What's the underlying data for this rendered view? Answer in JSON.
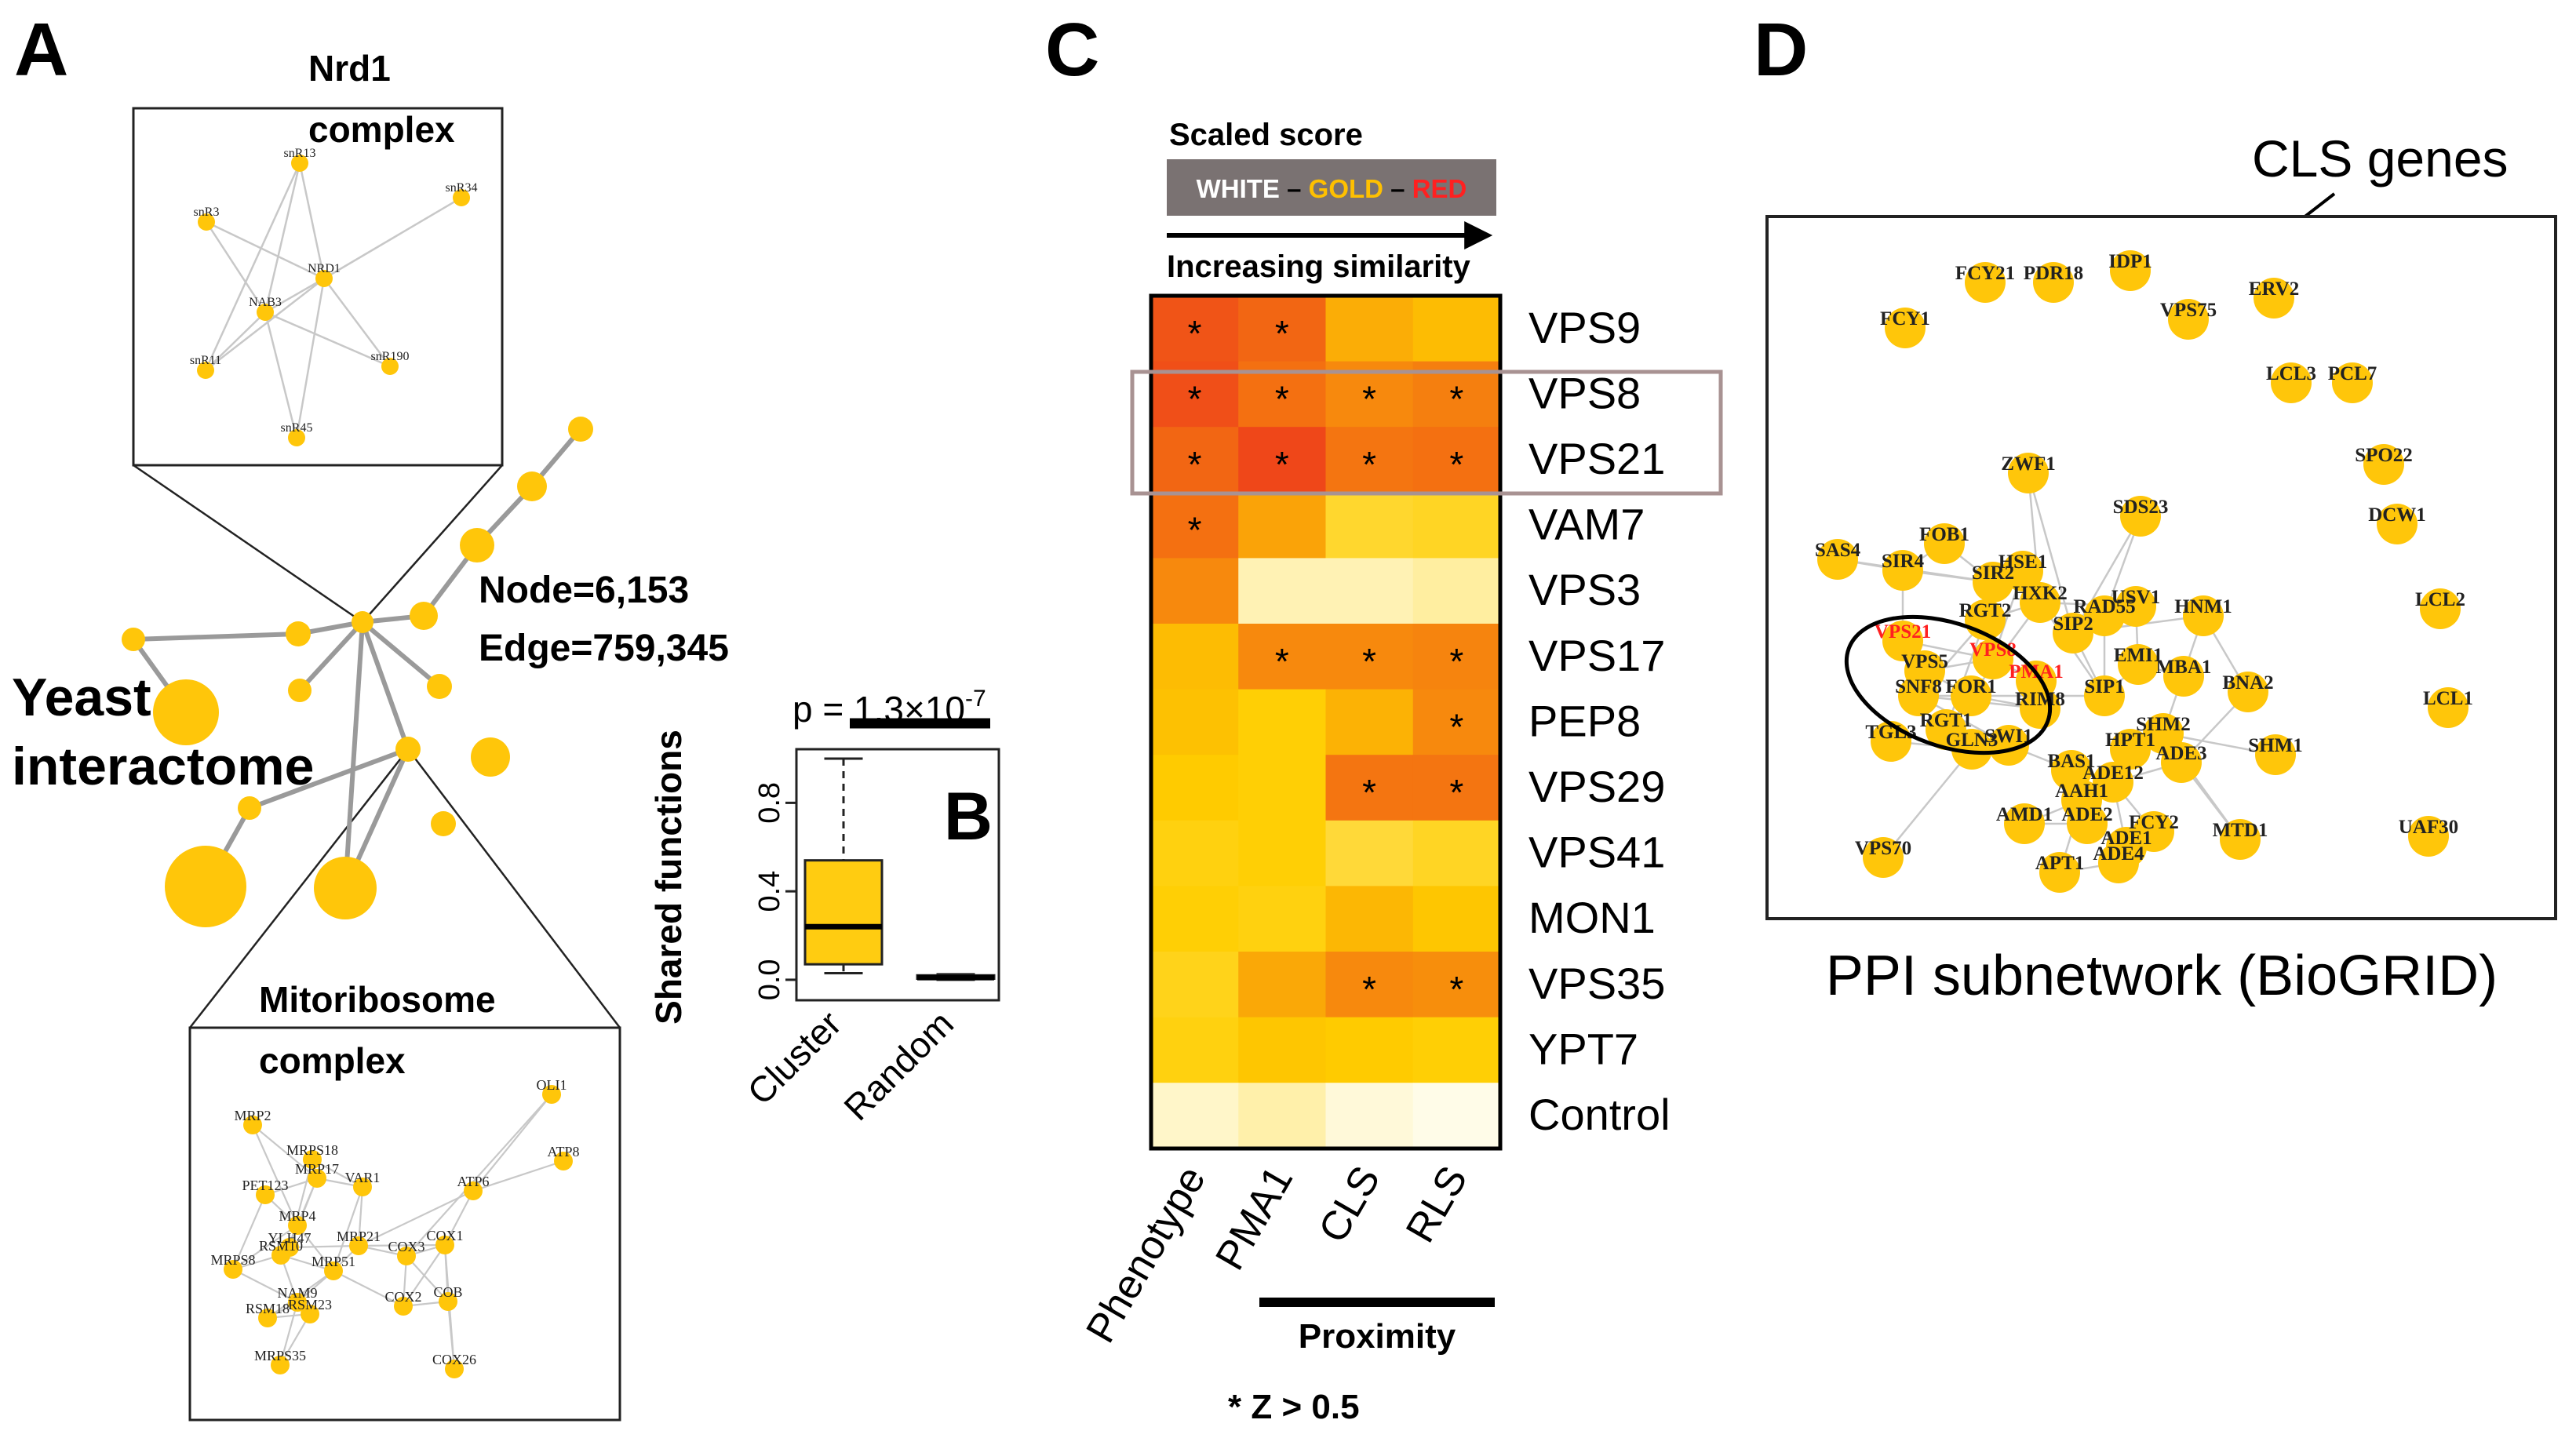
{
  "panels": {
    "A": "A",
    "B": "B",
    "C": "C",
    "D": "D"
  },
  "panel_a": {
    "title": [
      "Yeast",
      "interactome"
    ],
    "stats": {
      "nodes": "Node=6,153",
      "edges": "Edge=759,345"
    },
    "nrd1": {
      "title": [
        "Nrd1",
        "complex"
      ],
      "nodes": [
        "snR13",
        "snR34",
        "snR3",
        "NRD1",
        "NAB3",
        "snR11",
        "snR190",
        "snR45"
      ]
    },
    "mito": {
      "title": [
        "Mitoribosome",
        "complex"
      ],
      "nodes": [
        "OLI1",
        "MRP2",
        "MRPS18",
        "PET123",
        "MRP17",
        "VAR1",
        "ATP6",
        "ATP8",
        "MRP4",
        "YLH47",
        "MRP21",
        "COX3",
        "COX1",
        "MRPS8",
        "RSM10",
        "MRP51",
        "NAM9",
        "RSM18",
        "RSM23",
        "COX2",
        "COB",
        "MRPS35",
        "COX26"
      ]
    }
  },
  "panel_b": {
    "ylabel": "Shared functions",
    "pvalue": {
      "base": "p = 1.3×10",
      "exp": "-7"
    },
    "yticks": [
      "0.0",
      "0.4",
      "0.8"
    ],
    "categories": [
      "Cluster",
      "Random"
    ]
  },
  "panel_c": {
    "legend_title": "Scaled score",
    "legend_scale": {
      "white": "WHITE",
      "gold": "GOLD",
      "red": "RED",
      "sep": " – "
    },
    "legend_arrow_label": "Increasing similarity",
    "rows": [
      "VPS9",
      "VPS8",
      "VPS21",
      "VAM7",
      "VPS3",
      "VPS17",
      "PEP8",
      "VPS29",
      "VPS41",
      "MON1",
      "VPS35",
      "YPT7",
      "Control"
    ],
    "columns": [
      "Phenotype",
      "PMA1",
      "CLS",
      "RLS"
    ],
    "group_label": "Proximity",
    "footnote": "*  Z > 0.5",
    "star": "*"
  },
  "panel_d": {
    "caption": "PPI subnetwork (BioGRID)",
    "callout": "CLS genes",
    "genes": [
      "FCY1",
      "FCY21",
      "PDR18",
      "IDP1",
      "VPS75",
      "ERV2",
      "LCL3",
      "PCL7",
      "SPO22",
      "DCW1",
      "LCL2",
      "LCL1",
      "UAF30",
      "ZWF1",
      "SDS23",
      "SAS4",
      "FOB1",
      "SIR4",
      "HSE1",
      "SIR2",
      "HXK2",
      "RAD55",
      "USV1",
      "HNM1",
      "RGT2",
      "SIP2",
      "VPS21",
      "VPS8",
      "PMA1",
      "VPS5",
      "EMI1",
      "MBA1",
      "BNA2",
      "SNF8",
      "FOR1",
      "RIM8",
      "SIP1",
      "SHM2",
      "SHM1",
      "TGL3",
      "RGT1",
      "GLN3",
      "SWI1",
      "HPT1",
      "ADE3",
      "BAS1",
      "ADE12",
      "AAH1",
      "AMD1",
      "ADE2",
      "FCY2",
      "ADE1",
      "MTD1",
      "VPS70",
      "APT1",
      "ADE4"
    ]
  },
  "chart_data": [
    {
      "type": "box",
      "title": "B",
      "ylabel": "Shared functions",
      "ylim": [
        -0.05,
        1.0
      ],
      "categories": [
        "Cluster",
        "Random"
      ],
      "boxes": [
        {
          "name": "Cluster",
          "min": 0.03,
          "q1": 0.07,
          "median": 0.24,
          "q3": 0.54,
          "max": 1.0
        },
        {
          "name": "Random",
          "min": 0.0,
          "q1": 0.005,
          "median": 0.01,
          "q3": 0.02,
          "max": 0.025
        }
      ],
      "annotation": "p = 1.3×10^-7"
    },
    {
      "type": "heatmap",
      "title": "Scaled score",
      "rows": [
        "VPS9",
        "VPS8",
        "VPS21",
        "VAM7",
        "VPS3",
        "VPS17",
        "PEP8",
        "VPS29",
        "VPS41",
        "MON1",
        "VPS35",
        "YPT7",
        "Control"
      ],
      "columns": [
        "Phenotype",
        "PMA1",
        "CLS",
        "RLS"
      ],
      "values": [
        [
          0.93,
          0.86,
          0.58,
          0.52
        ],
        [
          0.95,
          0.82,
          0.72,
          0.76
        ],
        [
          0.86,
          0.98,
          0.8,
          0.82
        ],
        [
          0.82,
          0.62,
          0.36,
          0.38
        ],
        [
          0.72,
          0.1,
          0.1,
          0.14
        ],
        [
          0.52,
          0.72,
          0.72,
          0.74
        ],
        [
          0.5,
          0.44,
          0.56,
          0.72
        ],
        [
          0.46,
          0.44,
          0.8,
          0.8
        ],
        [
          0.42,
          0.44,
          0.34,
          0.38
        ],
        [
          0.44,
          0.42,
          0.54,
          0.48
        ],
        [
          0.4,
          0.6,
          0.72,
          0.7
        ],
        [
          0.42,
          0.48,
          0.46,
          0.44
        ],
        [
          0.06,
          0.12,
          0.03,
          0.0
        ]
      ],
      "significant": [
        [
          true,
          true,
          false,
          false
        ],
        [
          true,
          true,
          true,
          true
        ],
        [
          true,
          true,
          true,
          true
        ],
        [
          true,
          false,
          false,
          false
        ],
        [
          false,
          false,
          false,
          false
        ],
        [
          false,
          true,
          true,
          true
        ],
        [
          false,
          false,
          false,
          true
        ],
        [
          false,
          false,
          true,
          true
        ],
        [
          false,
          false,
          false,
          false
        ],
        [
          false,
          false,
          false,
          false
        ],
        [
          false,
          false,
          true,
          true
        ],
        [
          false,
          false,
          false,
          false
        ],
        [
          false,
          false,
          false,
          false
        ]
      ],
      "highlighted_rows": [
        "VPS8",
        "VPS21"
      ],
      "colorscale": [
        "WHITE",
        "GOLD",
        "RED"
      ],
      "significance_rule": "Z > 0.5"
    }
  ]
}
